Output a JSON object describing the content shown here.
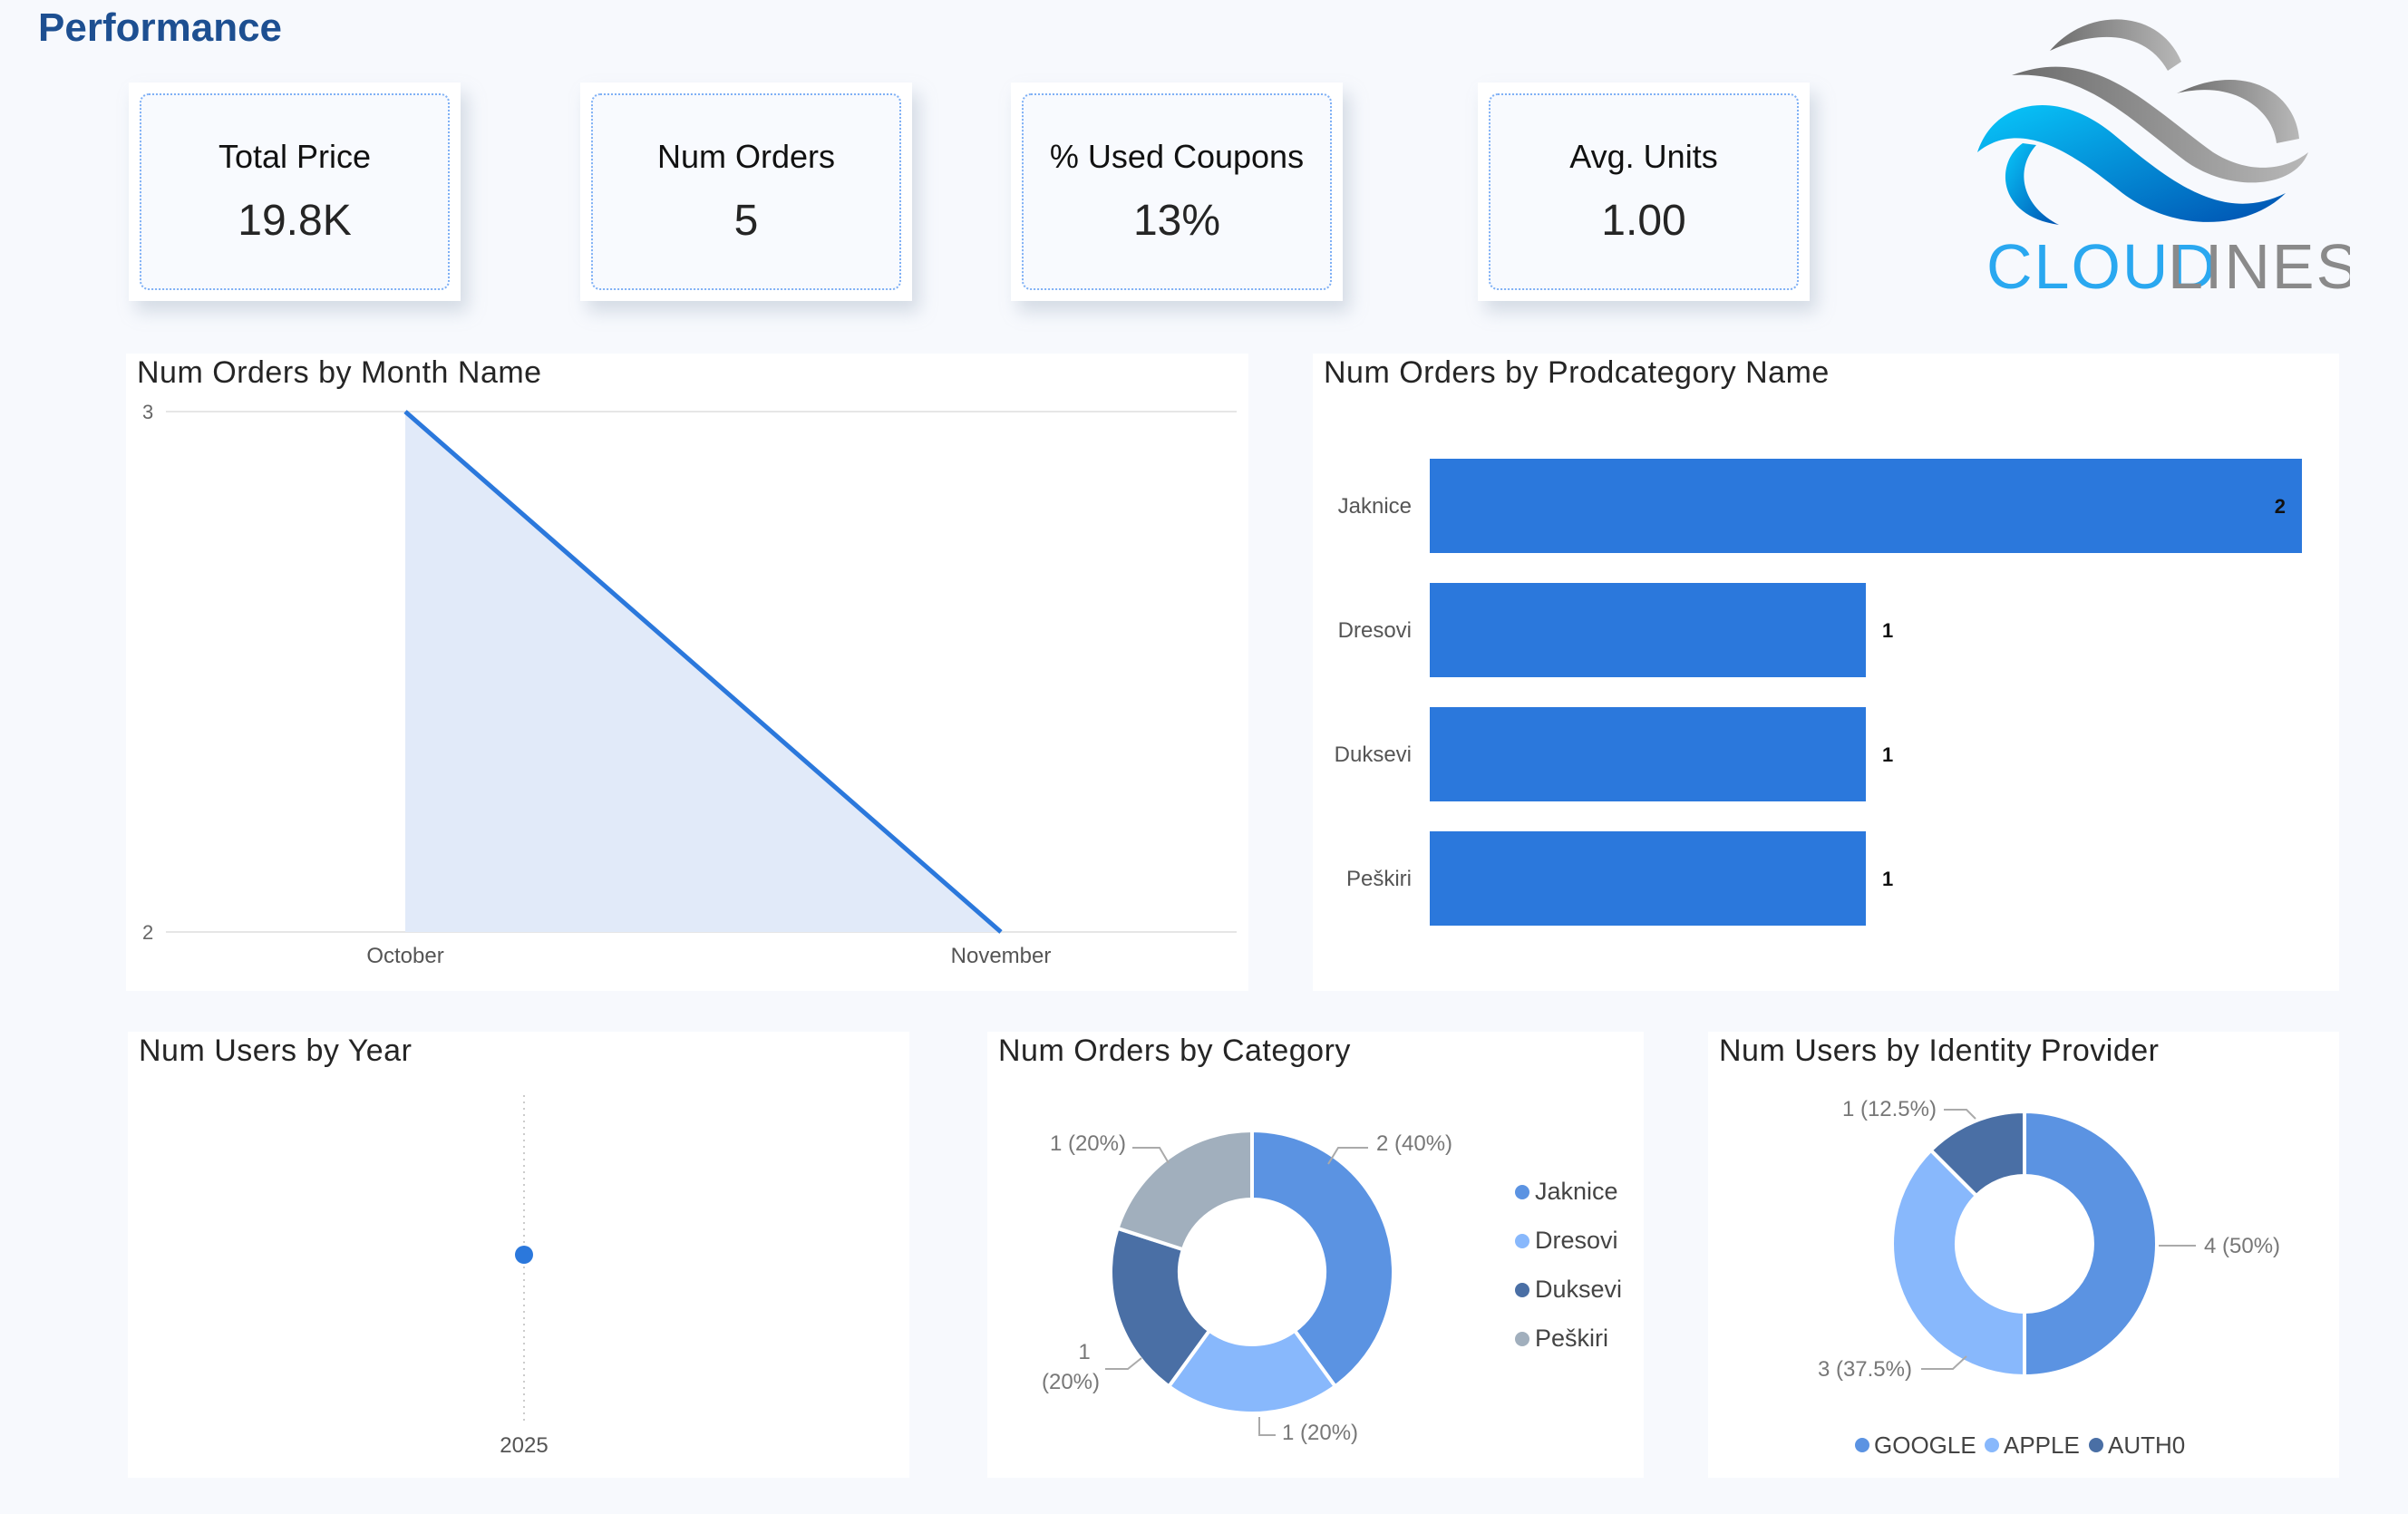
{
  "header": {
    "title": "Performance"
  },
  "kpis": [
    {
      "label": "Total Price",
      "value": "19.8K"
    },
    {
      "label": "Num Orders",
      "value": "5"
    },
    {
      "label": "% Used Coupons",
      "value": "13%"
    },
    {
      "label": "Avg. Units",
      "value": "1.00"
    }
  ],
  "logo": {
    "text_left": "CLOUD",
    "text_right": "LINES"
  },
  "colors": {
    "accent": "#2b78dc",
    "area": "#e1eaf9",
    "title": "#1d4f91"
  },
  "chart_data": [
    {
      "type": "area",
      "title": "Num Orders by Month Name",
      "categories": [
        "October",
        "November"
      ],
      "values": [
        3,
        2
      ],
      "ylim": [
        2,
        3
      ],
      "yticks": [
        "3",
        "2"
      ],
      "grid": true
    },
    {
      "type": "bar",
      "orientation": "horizontal",
      "title": "Num Orders by Prodcategory Name",
      "categories": [
        "Jaknice",
        "Dresovi",
        "Duksevi",
        "Peškiri"
      ],
      "values": [
        2,
        1,
        1,
        1
      ],
      "data_labels": [
        "2",
        "1",
        "1",
        "1"
      ]
    },
    {
      "type": "scatter",
      "title": "Num Users by Year",
      "categories": [
        "2025"
      ],
      "values": [
        1
      ]
    },
    {
      "type": "pie",
      "donut": true,
      "title": "Num Orders by Category",
      "categories": [
        "Jaknice",
        "Dresovi",
        "Duksevi",
        "Peškiri"
      ],
      "values": [
        2,
        1,
        1,
        1
      ],
      "data_labels": [
        "2 (40%)",
        "1 (20%)",
        "1 (20%)",
        "1 (20%)"
      ],
      "colors": [
        "#5b93e2",
        "#88b8fc",
        "#4a6fa5",
        "#a1afbd"
      ],
      "legend": "right"
    },
    {
      "type": "pie",
      "donut": true,
      "title": "Num Users by Identity Provider",
      "categories": [
        "GOOGLE",
        "APPLE",
        "AUTH0"
      ],
      "values": [
        4,
        3,
        1
      ],
      "data_labels": [
        "4 (50%)",
        "3 (37.5%)",
        "1 (12.5%)"
      ],
      "colors": [
        "#5b93e2",
        "#88b8fc",
        "#4a6fa5"
      ],
      "legend": "bottom"
    }
  ]
}
